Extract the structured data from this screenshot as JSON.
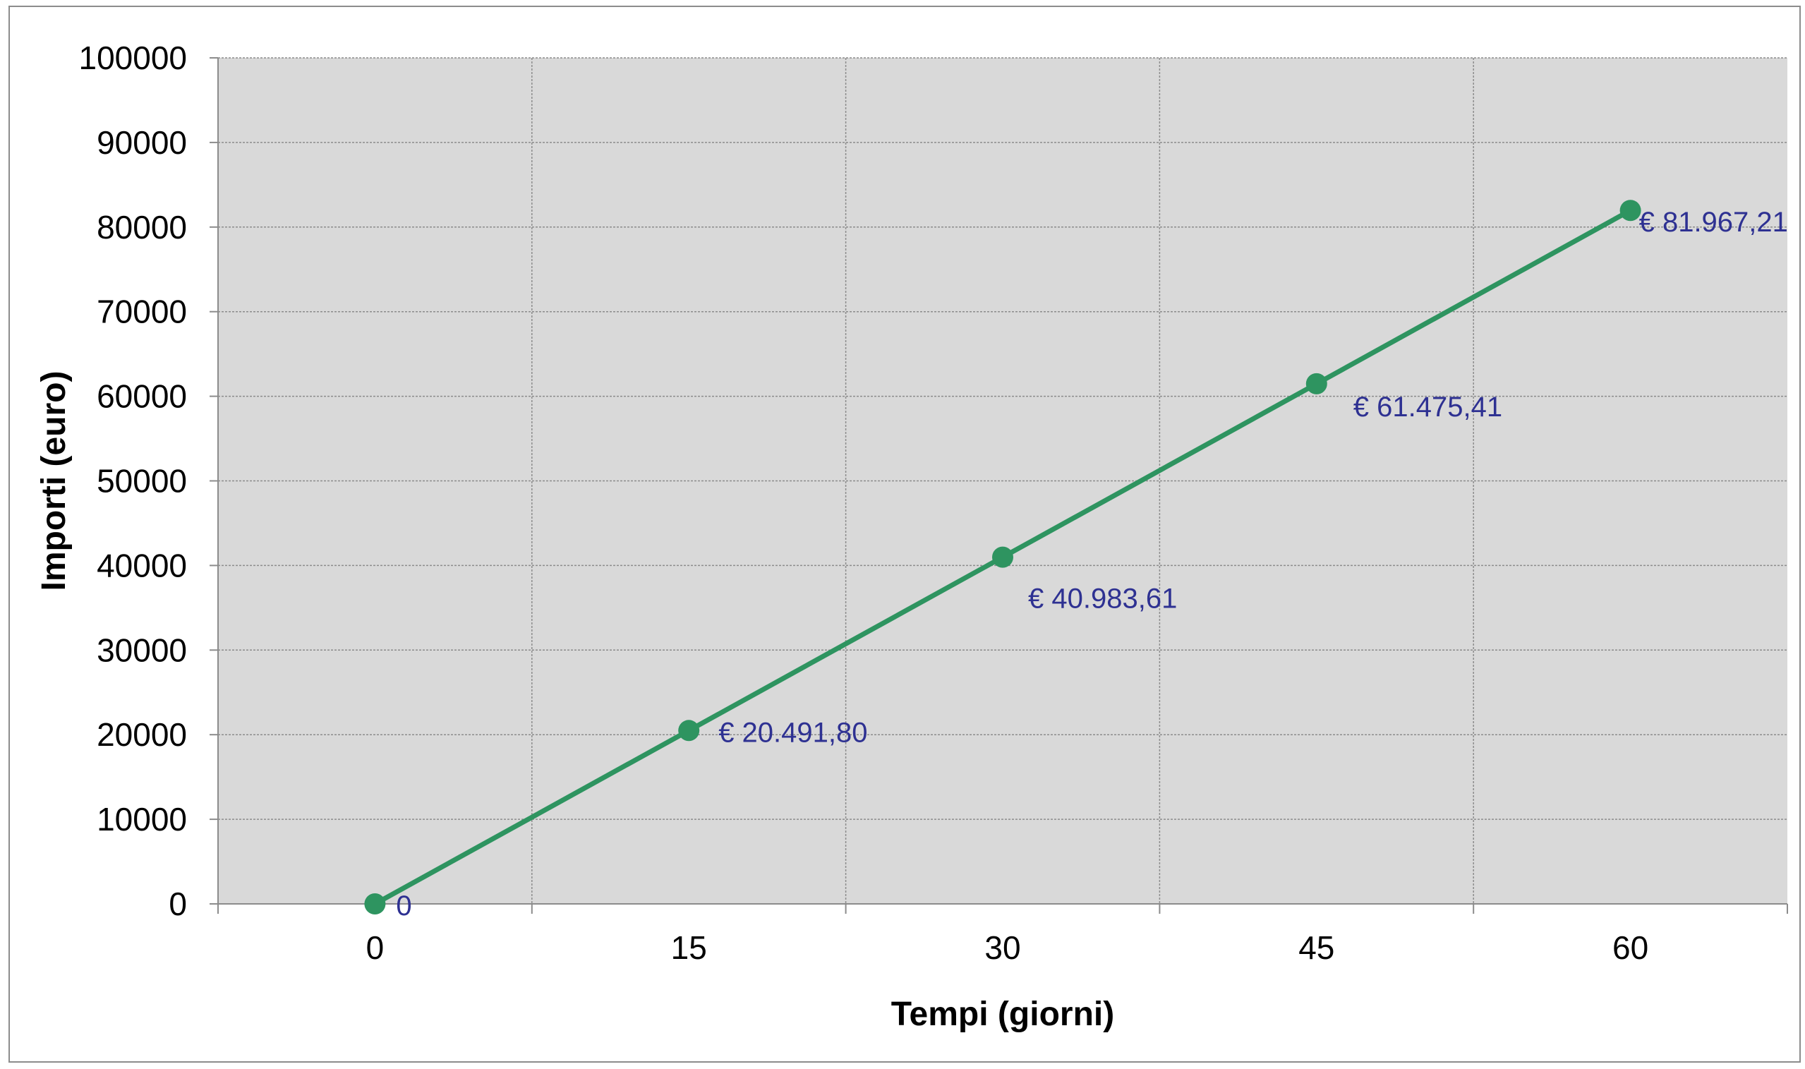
{
  "chart_data": {
    "type": "line",
    "title": "",
    "xlabel": "Tempi (giorni)",
    "ylabel": "Importi (euro)",
    "categories": [
      "0",
      "15",
      "30",
      "45",
      "60"
    ],
    "x": [
      0,
      15,
      30,
      45,
      60
    ],
    "ylim": [
      0,
      100000
    ],
    "yticks": [
      "0",
      "10000",
      "20000",
      "30000",
      "40000",
      "50000",
      "60000",
      "70000",
      "80000",
      "90000",
      "100000"
    ],
    "grid": true,
    "legend": "none",
    "series": [
      {
        "values": [
          0,
          20491.8,
          40983.61,
          61475.41,
          81967.21
        ],
        "data_labels": [
          "0",
          "€ 20.491,80",
          "€ 40.983,61",
          "€ 61.475,41",
          "€ 81.967,21"
        ],
        "color": "#2e9460"
      }
    ],
    "colors": {
      "plot_background": "#d9d9d9",
      "gridline": "#8c8c8c",
      "data_label": "#2e3192",
      "line": "#2e9460"
    }
  }
}
